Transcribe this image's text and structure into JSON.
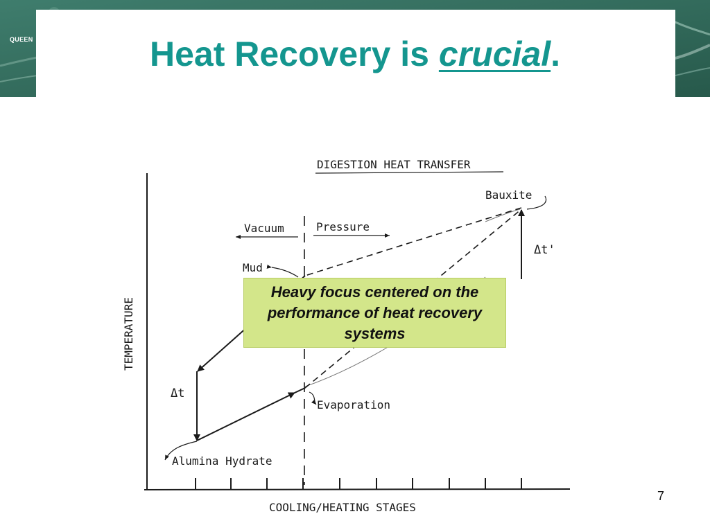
{
  "slide": {
    "logo_text": "QUEEN",
    "title_main": "Heat Recovery is ",
    "title_emphasis": "crucial",
    "title_end": ".",
    "page_number": "7"
  },
  "figure": {
    "title": "DIGESTION HEAT TRANSFER",
    "y_axis_label": "TEMPERATURE",
    "x_axis_label": "COOLING/HEATING STAGES",
    "labels": {
      "vacuum": "Vacuum",
      "pressure": "Pressure",
      "mud": "Mud",
      "bauxite": "Bauxite",
      "delta_t_prime": "Δt'",
      "delta_t": "Δt",
      "evaporation": "Evaporation",
      "alumina_hydrate": "Alumina Hydrate"
    }
  },
  "callout": {
    "text": "Heavy focus centered on the performance of heat recovery systems",
    "color": "#d3e68a"
  },
  "colors": {
    "title": "#14968f",
    "banner": "#2f6b5c"
  }
}
